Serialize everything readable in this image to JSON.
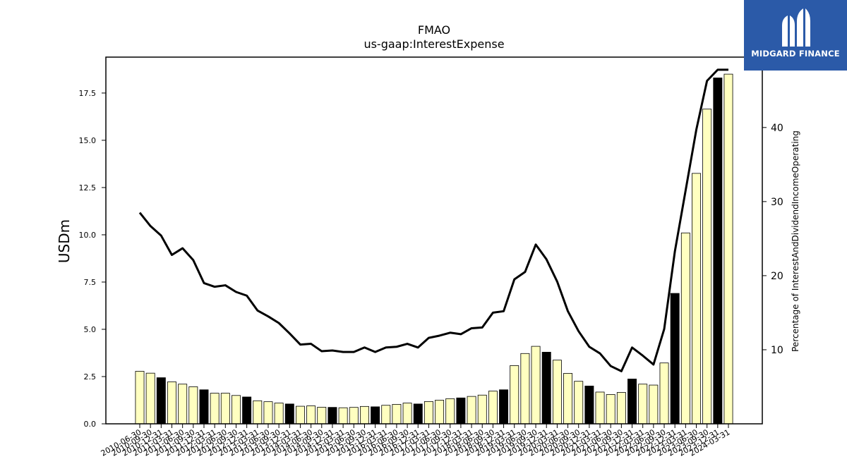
{
  "logo": {
    "text": "MIDGARD FINANCE"
  },
  "chart_data": {
    "type": "bar+line",
    "title": "FMAO",
    "subtitle": "us-gaap:InterestExpense",
    "ylabel": "USDm",
    "y2label": "Percentage of InterestAndDividendIncomeOperating",
    "ylim": [
      0,
      19.4
    ],
    "y2lim": [
      0,
      49.5
    ],
    "yticks": [
      "0.0",
      "2.5",
      "5.0",
      "7.5",
      "10.0",
      "12.5",
      "15.0",
      "17.5"
    ],
    "y2ticks": [
      "10",
      "20",
      "30",
      "40"
    ],
    "colors": {
      "bar": "#ffffc0",
      "bar_q4": "#000000",
      "edge": "#000000",
      "line": "#000000"
    },
    "categories": [
      "2010-06-30",
      "2010-09-30",
      "2010-12-31",
      "2011-03-31",
      "2011-06-30",
      "2011-09-30",
      "2011-12-31",
      "2012-03-31",
      "2012-06-30",
      "2012-09-30",
      "2012-12-31",
      "2013-03-31",
      "2013-06-30",
      "2013-09-30",
      "2013-12-31",
      "2014-03-31",
      "2014-06-30",
      "2014-09-30",
      "2014-12-31",
      "2015-03-31",
      "2015-06-30",
      "2015-09-30",
      "2015-12-31",
      "2016-03-31",
      "2016-06-30",
      "2016-09-30",
      "2016-12-31",
      "2017-03-31",
      "2017-06-30",
      "2017-09-30",
      "2017-12-31",
      "2018-03-31",
      "2018-06-30",
      "2018-09-30",
      "2018-12-31",
      "2019-03-31",
      "2019-06-30",
      "2019-09-30",
      "2019-12-31",
      "2020-03-31",
      "2020-06-30",
      "2020-09-30",
      "2020-12-31",
      "2021-03-31",
      "2021-06-30",
      "2021-09-30",
      "2021-12-31",
      "2022-03-31",
      "2022-06-30",
      "2022-09-30",
      "2022-12-31",
      "2023-03-31",
      "2023-06-30",
      "2023-09-30",
      "2023-12-31",
      "2024-03-31"
    ],
    "series": [
      {
        "type": "bar",
        "axis": "left",
        "values": [
          2.78,
          2.68,
          2.44,
          2.22,
          2.1,
          1.96,
          1.8,
          1.62,
          1.62,
          1.5,
          1.42,
          1.22,
          1.17,
          1.1,
          1.05,
          0.93,
          0.95,
          0.88,
          0.87,
          0.85,
          0.87,
          0.92,
          0.9,
          0.98,
          1.03,
          1.1,
          1.05,
          1.18,
          1.25,
          1.33,
          1.37,
          1.45,
          1.52,
          1.73,
          1.8,
          3.08,
          3.72,
          4.1,
          3.79,
          3.37,
          2.67,
          2.25,
          2.0,
          1.68,
          1.55,
          1.66,
          2.37,
          2.1,
          2.05,
          3.22,
          6.9,
          10.1,
          13.25,
          16.65,
          18.3,
          18.5
        ]
      },
      {
        "type": "line",
        "axis": "right",
        "values": [
          28.5,
          26.7,
          25.4,
          22.8,
          23.7,
          22.1,
          19.0,
          18.5,
          18.7,
          17.8,
          17.3,
          15.3,
          14.5,
          13.6,
          12.2,
          10.7,
          10.8,
          9.8,
          9.9,
          9.7,
          9.7,
          10.3,
          9.7,
          10.3,
          10.4,
          10.8,
          10.3,
          11.6,
          11.9,
          12.3,
          12.1,
          12.9,
          13.0,
          15.0,
          15.2,
          19.5,
          20.5,
          24.2,
          22.2,
          19.2,
          15.2,
          12.5,
          10.4,
          9.5,
          7.8,
          7.1,
          10.3,
          9.2,
          8.0,
          12.8,
          23.3,
          31.5,
          39.7,
          46.3,
          47.8,
          47.8
        ]
      }
    ]
  }
}
